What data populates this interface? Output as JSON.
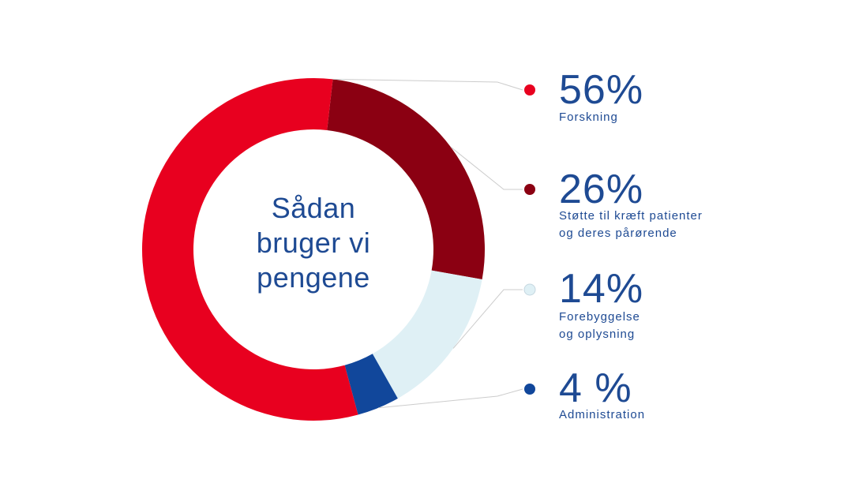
{
  "chart_data": {
    "type": "pie",
    "title_lines": [
      "Sådan",
      "bruger vi",
      "pengene"
    ],
    "unit": "%",
    "slices": [
      {
        "value": 26,
        "display": "26%",
        "label_lines": [
          "Støtte til kræft patienter",
          "og deres pårørende"
        ],
        "color": "#8b0012"
      },
      {
        "value": 14,
        "display": "14%",
        "label_lines": [
          "Forebyggelse",
          "og oplysning"
        ],
        "color": "#dff0f5"
      },
      {
        "value": 4,
        "display": "4 %",
        "label_lines": [
          "Administration"
        ],
        "color": "#11479b"
      },
      {
        "value": 56,
        "display": "56%",
        "label_lines": [
          "Forskning"
        ],
        "color": "#e8001f"
      }
    ]
  },
  "colors": {
    "text": "#1e4a93",
    "leader": "#cccccc",
    "marker_stroke": "#c5d7e0"
  }
}
